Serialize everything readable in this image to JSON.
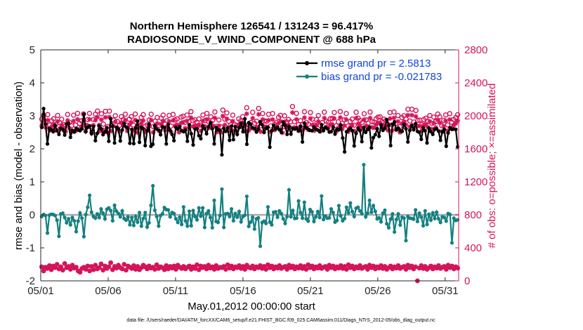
{
  "chart_data": {
    "type": "line",
    "title_line1": "Northern Hemisphere 126541 / 131243 = 96.417%",
    "title_line2": "RADIOSONDE_V_WIND_COMPONENT @ 688 hPa",
    "xlabel": "May.01,2012 00:00:00 start",
    "ylabel_left": "rmse and bias (model - observation)",
    "ylabel_right": "# of obs: o=possible; ×=assimilated",
    "footer": "data file: /Users/raeder/DAI/ATM_forcXX/CAM6_setup/f.e21.FHIST_BGC.f09_025.CAM6assim.011/Diags_NTrS_2012-05/obs_diag_output.nc",
    "x_ticks": [
      {
        "day": 1,
        "label": "05/01"
      },
      {
        "day": 6,
        "label": "05/06"
      },
      {
        "day": 11,
        "label": "05/11"
      },
      {
        "day": 16,
        "label": "05/16"
      },
      {
        "day": 21,
        "label": "05/21"
      },
      {
        "day": 26,
        "label": "05/26"
      },
      {
        "day": 31,
        "label": "05/31"
      }
    ],
    "xlim": [
      1,
      32
    ],
    "y_left_ticks": [
      "5",
      "4",
      "3",
      "2",
      "1",
      "0",
      "-1",
      "-2"
    ],
    "y_left_values": [
      5,
      4,
      3,
      2,
      1,
      0,
      -1,
      -2
    ],
    "ylim_left": [
      -2,
      5
    ],
    "y_right_ticks": [
      "2800",
      "2400",
      "2000",
      "1600",
      "1200",
      "800",
      "400",
      "0"
    ],
    "y_right_values": [
      2800,
      2400,
      2000,
      1600,
      1200,
      800,
      400,
      0
    ],
    "ylim_right": [
      0,
      2800
    ],
    "colors": {
      "rmse": "#000000",
      "bias": "#148080",
      "obs": "#d4145a",
      "zero_line": "#aaaaaa",
      "legend_text": "#1144dd"
    },
    "legend": [
      {
        "name": "rmse grand pr = 2.5813",
        "series": "rmse"
      },
      {
        "name": "bias grand pr = -0.021783",
        "series": "bias"
      }
    ],
    "series": [
      {
        "name": "rmse",
        "values": [
          2.65,
          3.22,
          2.75,
          2.15,
          2.62,
          2.58,
          2.52,
          2.71,
          2.55,
          2.44,
          2.62,
          2.6,
          2.42,
          2.76,
          2.78,
          2.35,
          2.56,
          2.51,
          2.62,
          2.57,
          2.55,
          2.61,
          3.05,
          2.52,
          2.65,
          2.69,
          2.46,
          2.68,
          2.25,
          2.47,
          2.7,
          2.61,
          2.43,
          2.51,
          2.64,
          2.23,
          2.91,
          2.68,
          2.18,
          2.65,
          2.6,
          2.24,
          2.57,
          2.77,
          2.66,
          2.62,
          2.17,
          2.59,
          2.16,
          2.62,
          2.84,
          2.2,
          2.66,
          2.61,
          2.1,
          2.55,
          2.75,
          2.08,
          2.14,
          2.7,
          2.6,
          2.57,
          2.43,
          2.67,
          2.65,
          2.15,
          2.74,
          2.56,
          2.44,
          2.25,
          2.65,
          2.6,
          2.67,
          2.55,
          2.52,
          2.57,
          2.23,
          2.73,
          2.46,
          2.12,
          2.6,
          2.61,
          2.4,
          2.31,
          2.7,
          2.61,
          2.46,
          2.67,
          2.79,
          2.61,
          2.15,
          2.65,
          2.58,
          2.56,
          1.82,
          2.62,
          2.53,
          2.63,
          2.26,
          2.69,
          2.28,
          2.67,
          2.44,
          2.64,
          2.78,
          2.52,
          2.91,
          2.14,
          2.79,
          2.75,
          2.64,
          2.62,
          2.51,
          2.59,
          2.82,
          2.73,
          2.5,
          2.62,
          2.66,
          2.05,
          2.55,
          2.71,
          2.6,
          2.66,
          2.58,
          2.5,
          2.81,
          2.71,
          2.44,
          2.67,
          2.45,
          2.62,
          2.6,
          2.63,
          2.54,
          2.68,
          2.21,
          2.78,
          2.64,
          2.6,
          2.56,
          2.55,
          2.66,
          2.6,
          2.57,
          2.52,
          2.73,
          2.55,
          2.65,
          2.61,
          2.51,
          2.52,
          2.66,
          2.45,
          2.59,
          2.58,
          2.72,
          2.33,
          1.91,
          2.52,
          2.57,
          2.62,
          2.55,
          2.09,
          2.47,
          2.63,
          2.55,
          2.22,
          2.65,
          2.5,
          2.59,
          2.66,
          2.03,
          2.34,
          2.43,
          2.61,
          2.38,
          2.72,
          2.56,
          2.62,
          2.88,
          2.72,
          2.1,
          2.74,
          2.82,
          2.57,
          2.63,
          2.55,
          2.53,
          2.74,
          2.61,
          2.21,
          2.56,
          2.71,
          2.58,
          2.76,
          2.53,
          2.5,
          2.29,
          2.64,
          2.55,
          2.18,
          2.63,
          2.52,
          2.44,
          2.59,
          2.61,
          2.54,
          2.26,
          2.51,
          2.59,
          2.08,
          2.48,
          2.64,
          2.59,
          2.6,
          2.59,
          2.06
        ]
      },
      {
        "name": "bias",
        "values": [
          -0.05,
          0.01,
          -0.02,
          -0.55,
          -0.01,
          0.02,
          0.01,
          -0.02,
          -0.16,
          -0.65,
          0.03,
          0.05,
          -0.08,
          -0.24,
          -0.12,
          -0.3,
          -0.08,
          -0.18,
          -0.51,
          -0.19,
          0.06,
          -0.1,
          -0.66,
          0.01,
          0.23,
          0.59,
          0.08,
          -0.05,
          -0.1,
          0.03,
          -0.08,
          0.18,
          0.05,
          -0.12,
          0.17,
          0.21,
          0.13,
          -0.18,
          0.29,
          0.11,
          0.04,
          -0.06,
          0.12,
          -0.11,
          -0.16,
          -0.06,
          -0.3,
          -0.08,
          -0.32,
          -0.05,
          -0.22,
          0.07,
          -0.34,
          -0.11,
          0.07,
          -0.37,
          -0.24,
          0.29,
          0.88,
          0.14,
          -0.05,
          -0.34,
          -0.02,
          0.03,
          0.22,
          0.16,
          0.15,
          -0.06,
          0.07,
          0.04,
          -0.12,
          -0.23,
          -0.07,
          -0.29,
          0.24,
          -0.18,
          -0.34,
          0.11,
          -0.33,
          0.13,
          -0.05,
          -0.15,
          0.21,
          -0.04,
          0.21,
          -0.38,
          0.04,
          0.12,
          -0.08,
          -0.39,
          0.44,
          -0.2,
          -0.23,
          -0.02,
          0.78,
          -0.38,
          0.03,
          0.04,
          -0.05,
          0.18,
          -0.18,
          0.04,
          -0.07,
          0.1,
          -0.21,
          -0.05,
          -0.01,
          0.56,
          -0.35,
          -0.22,
          -0.07,
          -0.43,
          -0.12,
          -0.09,
          -0.95,
          -0.23,
          -0.19,
          -0.26,
          0.24,
          -0.22,
          -0.3,
          0.08,
          0.09,
          -0.07,
          0.12,
          0.04,
          -0.12,
          -0.26,
          -0.05,
          0.76,
          -0.06,
          0.13,
          -0.11,
          -0.1,
          0.42,
          0.07,
          -0.1,
          0.38,
          -0.12,
          -0.19,
          0.16,
          0.09,
          -0.2,
          -0.06,
          0.1,
          -0.08,
          0.57,
          -0.14,
          -0.04,
          -0.1,
          -0.09,
          0.18,
          0.07,
          -0.22,
          -0.17,
          0.28,
          -0.03,
          -0.18,
          -0.11,
          0.23,
          0.06,
          0.36,
          0.1,
          -0.05,
          0.2,
          0.23,
          0.12,
          0.04,
          1.52,
          -0.06,
          0.05,
          0.44,
          0.08,
          0.28,
          0.11,
          -0.12,
          -0.09,
          -0.21,
          0.05,
          0.14,
          -0.27,
          -0.39,
          -0.13,
          0.03,
          -0.52,
          -0.14,
          0.03,
          -0.31,
          -0.07,
          -0.1,
          -0.78,
          -0.05,
          -0.1,
          -0.11,
          -0.13,
          0.15,
          -0.2,
          0.05,
          -0.07,
          -0.33,
          0.12,
          -0.29,
          0.02,
          -0.16,
          0.06,
          -0.11,
          0.08,
          -0.12,
          -0.23,
          -0.06,
          -0.08,
          -0.19,
          0.04,
          0.01,
          -0.85,
          -0.1,
          -0.17,
          -0.15
        ]
      },
      {
        "name": "obs_possible",
        "values": [
          1960,
          2010,
          1925,
          2015,
          1890,
          1940,
          1965,
          1895,
          2005,
          1918,
          1960,
          1895,
          1880,
          2017,
          1920,
          1880,
          2008,
          1888,
          2030,
          1908,
          1940,
          2023,
          1885,
          1955,
          2030,
          1870,
          1955,
          2020,
          2058,
          1885,
          2025,
          1900,
          2055,
          1870,
          2057,
          1885,
          1950,
          2002,
          1932,
          1882,
          1990,
          1955,
          2020,
          1888,
          1960,
          1992,
          1890,
          2022,
          1870,
          1925,
          1980,
          2015,
          1875,
          1890,
          1950,
          2020,
          1870,
          1935,
          1980,
          1886,
          1972,
          2010,
          1898,
          1942,
          2005,
          1876,
          2017,
          1950,
          1963,
          1871,
          1985,
          1995,
          1920,
          2010,
          1930,
          2050,
          1940,
          1952,
          1925,
          1962,
          1887,
          2010,
          1943,
          2030,
          1924,
          1988,
          1950,
          2047,
          1874,
          1950,
          1868,
          2070,
          1960,
          2036,
          1934,
          1890,
          2008,
          1893,
          1885,
          1963,
          1940,
          1990,
          1885,
          2098,
          1892,
          1918,
          2043,
          1910,
          1935,
          2090,
          1879,
          2028,
          1938,
          1934,
          2019,
          1878,
          2028,
          1898,
          1922,
          1983,
          2006,
          1865,
          2000,
          1927,
          1955,
          1928,
          2113,
          1930,
          2030,
          1893,
          1942,
          1892,
          2050,
          1920,
          1900,
          2040,
          1960,
          1890,
          1955,
          2004,
          1883,
          1918,
          2045,
          1936,
          1923,
          1965,
          1968,
          2040,
          1880,
          1927,
          2052,
          1910,
          1952,
          2028,
          1877,
          1932,
          1961,
          1887,
          2044,
          1973,
          1943,
          1920,
          2026,
          1950,
          1912,
          2046,
          1930,
          1924,
          1965,
          1985,
          1988,
          1930,
          1960,
          1944,
          1895,
          2040,
          1890,
          2047,
          1908,
          2004,
          1870,
          1979,
          2002,
          1963,
          2080,
          1938,
          2080,
          1925,
          2065,
          1945,
          1948,
          1895,
          1955,
          1972,
          1932,
          2004,
          1910,
          1985,
          1930,
          2022,
          1988,
          1882,
          1945,
          2011,
          1890,
          2027,
          1922,
          1956,
          1978,
          2014
        ]
      },
      {
        "name": "obs_assimilated",
        "values": [
          1880,
          1935,
          1858,
          1948,
          1823,
          1870,
          1895,
          1825,
          1933,
          1848,
          1888,
          1825,
          1810,
          1945,
          1850,
          1810,
          1937,
          1817,
          1958,
          1838,
          1870,
          1950,
          1815,
          1885,
          1958,
          1800,
          1885,
          1948,
          1985,
          1815,
          1953,
          1830,
          1982,
          1800,
          1984,
          1815,
          1880,
          1930,
          1860,
          1812,
          1918,
          1885,
          1948,
          1817,
          1890,
          1920,
          1820,
          1950,
          1800,
          1855,
          1908,
          1943,
          1805,
          1820,
          1880,
          1948,
          1800,
          1865,
          1908,
          1816,
          1900,
          1938,
          1828,
          1872,
          1933,
          1806,
          1945,
          1880,
          1893,
          1801,
          1913,
          1923,
          1850,
          1938,
          1860,
          1978,
          1870,
          1882,
          1855,
          1892,
          1817,
          1938,
          1873,
          1958,
          1854,
          1916,
          1880,
          1975,
          1804,
          1880,
          1798,
          1998,
          1890,
          1964,
          1864,
          1820,
          1936,
          1823,
          1815,
          1893,
          1870,
          1918,
          1815,
          2025,
          1822,
          1848,
          1971,
          1840,
          1865,
          2018,
          1809,
          1956,
          1868,
          1864,
          1947,
          1808,
          1956,
          1828,
          1852,
          1911,
          1934,
          1795,
          1928,
          1857,
          1885,
          1858,
          2040,
          1860,
          1958,
          1823,
          1872,
          1822,
          1978,
          1850,
          1830,
          1968,
          1890,
          1820,
          1885,
          1932,
          1813,
          1848,
          1973,
          1866,
          1853,
          1895,
          1898,
          1968,
          1810,
          1857,
          1980,
          1840,
          1882,
          1956,
          1807,
          1862,
          1891,
          1817,
          1972,
          1903,
          1873,
          1850,
          1954,
          1880,
          1842,
          1974,
          1860,
          1854,
          1895,
          1913,
          1916,
          1860,
          1890,
          1874,
          1825,
          1968,
          1820,
          1975,
          1838,
          1932,
          1800,
          1907,
          1930,
          1893,
          2008,
          1868,
          2008,
          1855,
          1993,
          1875,
          1878,
          1825,
          1885,
          1900,
          1862,
          1932,
          1840,
          1913,
          1860,
          1950,
          1916,
          1812,
          1875,
          1939,
          1820,
          1955,
          1852,
          1886,
          1906,
          1942
        ]
      },
      {
        "name": "obs_bottom",
        "values": [
          170,
          120,
          165,
          150,
          185,
          135,
          180,
          160,
          200,
          145,
          170,
          130,
          210,
          160,
          175,
          140,
          190,
          155,
          165,
          120,
          105,
          150,
          165,
          140,
          180,
          120,
          175,
          135,
          190,
          145,
          160,
          205,
          130,
          180,
          150,
          170,
          220,
          135,
          175,
          155,
          190,
          160,
          145,
          200,
          130,
          180,
          165,
          150,
          185,
          140,
          175,
          135,
          160,
          190,
          170,
          145,
          180,
          155,
          165,
          140,
          195,
          150,
          170,
          160,
          135,
          185,
          145,
          175,
          155,
          180,
          140,
          190,
          165,
          150,
          175,
          145,
          165,
          180,
          140,
          170,
          150,
          195,
          135,
          180,
          160,
          175,
          145,
          190,
          155,
          170,
          140,
          185,
          150,
          165,
          160,
          175,
          140,
          195,
          155,
          180,
          145,
          170,
          160,
          185,
          150,
          175,
          140,
          190,
          165,
          155,
          180,
          145,
          170,
          160,
          185,
          150,
          175,
          140,
          195,
          160,
          180,
          145,
          170,
          155,
          185,
          150,
          165,
          175,
          140,
          190,
          160,
          180,
          145,
          170,
          155,
          185,
          150,
          175,
          140,
          195,
          160,
          180,
          145,
          170,
          155,
          185,
          150,
          165,
          175,
          140,
          190,
          160,
          180,
          145,
          170,
          155,
          185,
          150,
          175,
          140,
          195,
          160,
          180,
          145,
          170,
          155,
          185,
          150,
          165,
          175,
          140,
          190,
          160,
          180,
          145,
          170,
          155,
          185,
          150,
          175,
          140,
          160,
          180,
          145,
          170,
          155,
          185,
          150,
          165,
          175,
          140,
          190,
          160,
          180,
          145,
          170,
          0,
          155,
          185,
          150,
          175,
          140,
          160,
          180,
          145,
          170,
          155,
          185,
          150,
          165,
          175,
          140,
          190,
          160,
          180,
          145,
          170,
          155
        ]
      }
    ]
  }
}
